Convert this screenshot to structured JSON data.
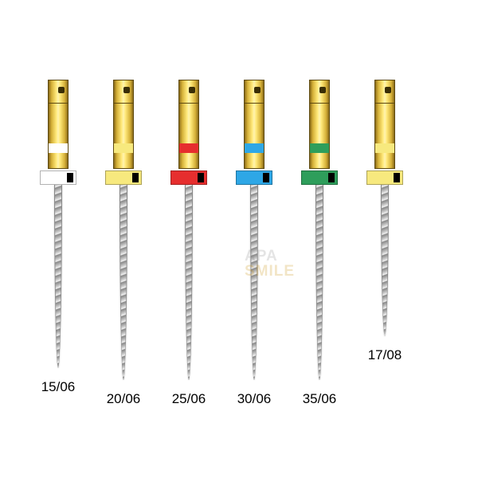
{
  "watermark": {
    "line1": "APA",
    "line2": "SMILE"
  },
  "files": [
    {
      "label": "15/06",
      "band_color": "#ffffff",
      "collar_color": "#ffffff",
      "flute_length": 230
    },
    {
      "label": "20/06",
      "band_color": "#f7e97e",
      "collar_color": "#f7e97e",
      "flute_length": 245
    },
    {
      "label": "25/06",
      "band_color": "#e62e2e",
      "collar_color": "#e62e2e",
      "flute_length": 245
    },
    {
      "label": "30/06",
      "band_color": "#2ea7e6",
      "collar_color": "#2ea7e6",
      "flute_length": 245
    },
    {
      "label": "35/06",
      "band_color": "#2e9e5b",
      "collar_color": "#2e9e5b",
      "flute_length": 245
    },
    {
      "label": "17/08",
      "band_color": "#f7e97e",
      "collar_color": "#f7e97e",
      "flute_length": 190
    }
  ]
}
